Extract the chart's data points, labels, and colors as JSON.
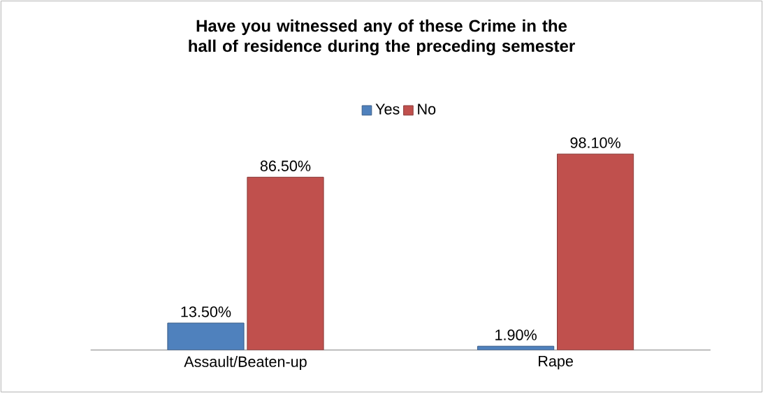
{
  "chart_data": {
    "type": "bar",
    "title": "Have you witnessed any of these Crime in the hall of residence during the preceding semester",
    "categories": [
      "Assault/Beaten-up",
      "Rape"
    ],
    "series": [
      {
        "name": "Yes",
        "color": "#4f81bd",
        "values": [
          13.5,
          1.9
        ],
        "value_labels": [
          "13.50%",
          "1.90%"
        ]
      },
      {
        "name": "No",
        "color": "#c0504d",
        "values": [
          86.5,
          98.1
        ],
        "value_labels": [
          "86.50%",
          "98.10%"
        ]
      }
    ],
    "legend": "top"
  }
}
